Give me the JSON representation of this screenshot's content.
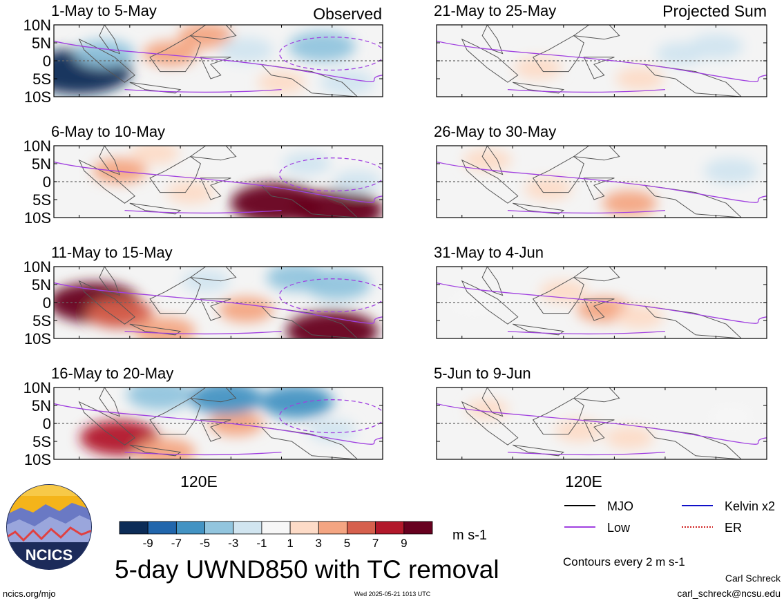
{
  "figure": {
    "title": "5-day UWND850 with TC removal",
    "timestamp": "Wed 2025-05-21 1013 UTC",
    "credit_url": "ncics.org/mjo",
    "author": "Carl Schreck",
    "author_email": "carl_schreck@ncsu.edu",
    "logo_text": "NCICS",
    "column_labels": {
      "left": "Observed",
      "right": "Projected Sum"
    },
    "x_tick_label": "120E",
    "y_tick_labels": [
      "10N",
      "5N",
      "0",
      "5S",
      "10S"
    ],
    "contour_note": "Contours every 2 m s-1"
  },
  "colorbar": {
    "unit": "m s-1",
    "tick_labels": [
      "-9",
      "-7",
      "-5",
      "-3",
      "-1",
      "1",
      "3",
      "5",
      "7",
      "9"
    ],
    "colors": [
      "#0c2c57",
      "#2166ac",
      "#4393c3",
      "#92c5de",
      "#d1e5f0",
      "#f7f7f7",
      "#fddbc7",
      "#f4a582",
      "#d6604d",
      "#b2182b",
      "#67001f"
    ]
  },
  "legend": {
    "items": [
      {
        "label": "MJO",
        "color": "#000000",
        "style": "solid"
      },
      {
        "label": "Kelvin x2",
        "color": "#1010c8",
        "style": "solid"
      },
      {
        "label": "Low",
        "color": "#a040e0",
        "style": "solid"
      },
      {
        "label": "ER",
        "color": "#d02020",
        "style": "dotted"
      }
    ]
  },
  "chart_data": [
    {
      "type": "heatmap",
      "title": "1-May to 5-May",
      "subtitle": "Observed",
      "field": "UWND850 anomaly",
      "unit": "m s-1",
      "lat_range": [
        "10S",
        "10N"
      ],
      "blobs": [
        {
          "lon": "95E",
          "lat": "3S",
          "value": -11
        },
        {
          "lon": "100E",
          "lat": "2N",
          "value": -4
        },
        {
          "lon": "113E",
          "lat": "2N",
          "value": 3
        },
        {
          "lon": "120E",
          "lat": "7N",
          "value": 3
        },
        {
          "lon": "128E",
          "lat": "3N",
          "value": -3
        },
        {
          "lon": "143E",
          "lat": "4N",
          "value": -5
        },
        {
          "lon": "148E",
          "lat": "6S",
          "value": -3
        },
        {
          "lon": "135E",
          "lat": "6S",
          "value": 2
        }
      ]
    },
    {
      "type": "heatmap",
      "title": "6-May to 10-May",
      "subtitle": "Observed",
      "field": "UWND850 anomaly",
      "unit": "m s-1",
      "lat_range": [
        "10S",
        "10N"
      ],
      "blobs": [
        {
          "lon": "103E",
          "lat": "3N",
          "value": 3
        },
        {
          "lon": "110E",
          "lat": "8N",
          "value": 2
        },
        {
          "lon": "117E",
          "lat": "3S",
          "value": 2
        },
        {
          "lon": "134E",
          "lat": "6S",
          "value": 9
        },
        {
          "lon": "146E",
          "lat": "8S",
          "value": 9
        },
        {
          "lon": "140E",
          "lat": "5N",
          "value": -2
        },
        {
          "lon": "150E",
          "lat": "0",
          "value": -2
        }
      ]
    },
    {
      "type": "heatmap",
      "title": "11-May to 15-May",
      "subtitle": "Observed",
      "field": "UWND850 anomaly",
      "unit": "m s-1",
      "lat_range": [
        "10S",
        "10N"
      ],
      "blobs": [
        {
          "lon": "98E",
          "lat": "0",
          "value": 9
        },
        {
          "lon": "103E",
          "lat": "3S",
          "value": 5
        },
        {
          "lon": "112E",
          "lat": "8S",
          "value": 4
        },
        {
          "lon": "128E",
          "lat": "2S",
          "value": 3
        },
        {
          "lon": "145E",
          "lat": "8S",
          "value": 9
        },
        {
          "lon": "138E",
          "lat": "7N",
          "value": -4
        },
        {
          "lon": "146E",
          "lat": "5N",
          "value": -5
        },
        {
          "lon": "120E",
          "lat": "6N",
          "value": -2
        }
      ]
    },
    {
      "type": "heatmap",
      "title": "16-May to 20-May",
      "subtitle": "Observed",
      "field": "UWND850 anomaly",
      "unit": "m s-1",
      "lat_range": [
        "10S",
        "10N"
      ],
      "blobs": [
        {
          "lon": "103E",
          "lat": "4S",
          "value": 7
        },
        {
          "lon": "112E",
          "lat": "8S",
          "value": 4
        },
        {
          "lon": "126E",
          "lat": "0",
          "value": 3
        },
        {
          "lon": "111E",
          "lat": "8N",
          "value": -5
        },
        {
          "lon": "124E",
          "lat": "7N",
          "value": -6
        },
        {
          "lon": "138E",
          "lat": "6N",
          "value": -6
        },
        {
          "lon": "145E",
          "lat": "2S",
          "value": -2
        }
      ]
    },
    {
      "type": "heatmap",
      "title": "21-May to 25-May",
      "subtitle": "Projected Sum",
      "field": "UWND850 anomaly",
      "unit": "m s-1",
      "lat_range": [
        "10S",
        "10N"
      ],
      "blobs": [
        {
          "lon": "110E",
          "lat": "2S",
          "value": 2
        },
        {
          "lon": "130E",
          "lat": "5S",
          "value": 2
        },
        {
          "lon": "145E",
          "lat": "4N",
          "value": -3
        },
        {
          "lon": "138E",
          "lat": "2N",
          "value": -2
        }
      ]
    },
    {
      "type": "heatmap",
      "title": "26-May to 30-May",
      "subtitle": "Projected Sum",
      "field": "UWND850 anomaly",
      "unit": "m s-1",
      "lat_range": [
        "10S",
        "10N"
      ],
      "blobs": [
        {
          "lon": "100E",
          "lat": "6N",
          "value": 2
        },
        {
          "lon": "112E",
          "lat": "2S",
          "value": 2
        },
        {
          "lon": "128E",
          "lat": "6S",
          "value": 3
        },
        {
          "lon": "148E",
          "lat": "3N",
          "value": -3
        }
      ]
    },
    {
      "type": "heatmap",
      "title": "31-May to 4-Jun",
      "subtitle": "Projected Sum",
      "field": "UWND850 anomaly",
      "unit": "m s-1",
      "lat_range": [
        "10S",
        "10N"
      ],
      "blobs": [
        {
          "lon": "115E",
          "lat": "3N",
          "value": 2
        },
        {
          "lon": "123E",
          "lat": "2S",
          "value": 3
        },
        {
          "lon": "130E",
          "lat": "4S",
          "value": 2
        },
        {
          "lon": "97E",
          "lat": "0",
          "value": -1
        }
      ]
    },
    {
      "type": "heatmap",
      "title": "5-Jun to 9-Jun",
      "subtitle": "Projected Sum",
      "field": "UWND850 anomaly",
      "unit": "m s-1",
      "lat_range": [
        "10S",
        "10N"
      ],
      "blobs": [
        {
          "lon": "118E",
          "lat": "2S",
          "value": 2
        },
        {
          "lon": "128E",
          "lat": "4S",
          "value": 2
        },
        {
          "lon": "100E",
          "lat": "4N",
          "value": 1
        },
        {
          "lon": "148E",
          "lat": "2N",
          "value": -1
        }
      ]
    }
  ]
}
